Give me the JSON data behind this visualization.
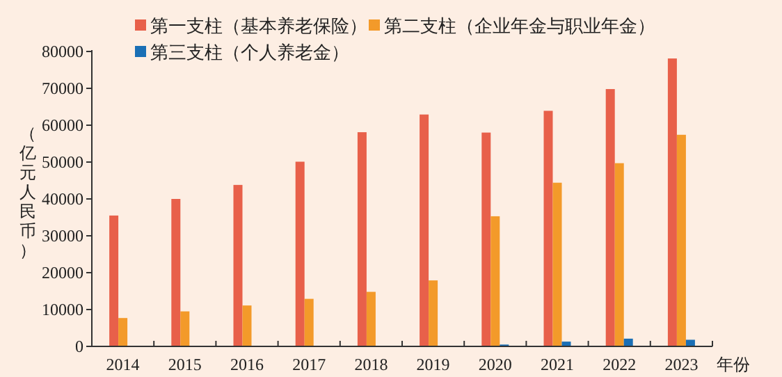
{
  "chart_data": {
    "type": "bar",
    "ylabel": "（亿元人民币）",
    "xlabel": "年份",
    "categories": [
      "2014",
      "2015",
      "2016",
      "2017",
      "2018",
      "2019",
      "2020",
      "2021",
      "2022",
      "2023"
    ],
    "series": [
      {
        "name": "第一支柱（基本养老保险）",
        "color": "#e8604a",
        "values": [
          35500,
          40000,
          43800,
          50100,
          58100,
          62900,
          58000,
          63900,
          69800,
          78100
        ]
      },
      {
        "name": "第二支柱（企业年金与职业年金）",
        "color": "#f39a2a",
        "values": [
          7700,
          9500,
          11100,
          12900,
          14800,
          17900,
          35300,
          44400,
          49700,
          57400
        ]
      },
      {
        "name": "第三支柱（个人养老金）",
        "color": "#1a6fb5",
        "values": [
          null,
          null,
          null,
          null,
          null,
          null,
          500,
          1300,
          2100,
          1800
        ]
      }
    ],
    "ylim": [
      0,
      80000
    ],
    "yticks": [
      0,
      10000,
      20000,
      30000,
      40000,
      50000,
      60000,
      70000,
      80000
    ],
    "legend": "top",
    "grid": false
  }
}
